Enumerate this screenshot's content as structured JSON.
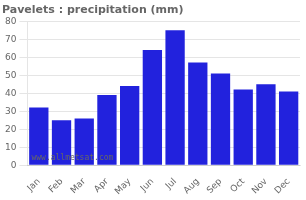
{
  "chart_data": {
    "type": "bar",
    "title": "Pavelets : precipitation (mm)",
    "categories": [
      "Jan",
      "Feb",
      "Mar",
      "Apr",
      "May",
      "Jun",
      "Jul",
      "Aug",
      "Sep",
      "Oct",
      "Nov",
      "Dec"
    ],
    "values": [
      32,
      25,
      26,
      39,
      44,
      64,
      75,
      57,
      51,
      42,
      45,
      41
    ],
    "color": "#2222dd",
    "ylim": [
      0,
      80
    ],
    "yticks": [
      0,
      10,
      20,
      30,
      40,
      50,
      60,
      70,
      80
    ],
    "grid": true,
    "annotations": [
      "www.allmetsat.com"
    ]
  }
}
